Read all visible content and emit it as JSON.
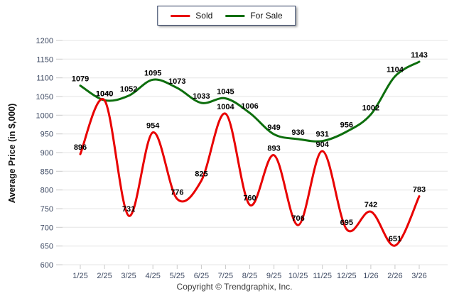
{
  "chart": {
    "footer": "Copyright © Trendgraphix, Inc.",
    "colors": {
      "legend_border": "#26365a",
      "grid": "#e5e5e5",
      "tick": "#c9c9c9",
      "axis_text": "#3e4a63",
      "label_text": "#000000"
    }
  },
  "chart_data": {
    "type": "line",
    "title": "",
    "xlabel": "",
    "ylabel": "Average Price (in $,000)",
    "ylim": [
      600,
      1200
    ],
    "yticks": [
      600,
      650,
      700,
      750,
      800,
      850,
      900,
      950,
      1000,
      1050,
      1100,
      1150,
      1200
    ],
    "grid": true,
    "legend_position": "top-center",
    "categories": [
      "1/25",
      "2/25",
      "3/25",
      "4/25",
      "5/25",
      "6/25",
      "7/25",
      "8/25",
      "9/25",
      "10/25",
      "11/25",
      "12/25",
      "1/26",
      "2/26",
      "3/26"
    ],
    "series": [
      {
        "name": "Sold",
        "color": "#e80000",
        "values": [
          896,
          1040,
          731,
          954,
          776,
          825,
          1004,
          760,
          893,
          706,
          904,
          695,
          742,
          651,
          783
        ]
      },
      {
        "name": "For Sale",
        "color": "#0d6e0d",
        "values": [
          1079,
          1040,
          1052,
          1095,
          1073,
          1033,
          1045,
          1006,
          949,
          936,
          931,
          956,
          1002,
          1104,
          1143
        ]
      }
    ]
  }
}
